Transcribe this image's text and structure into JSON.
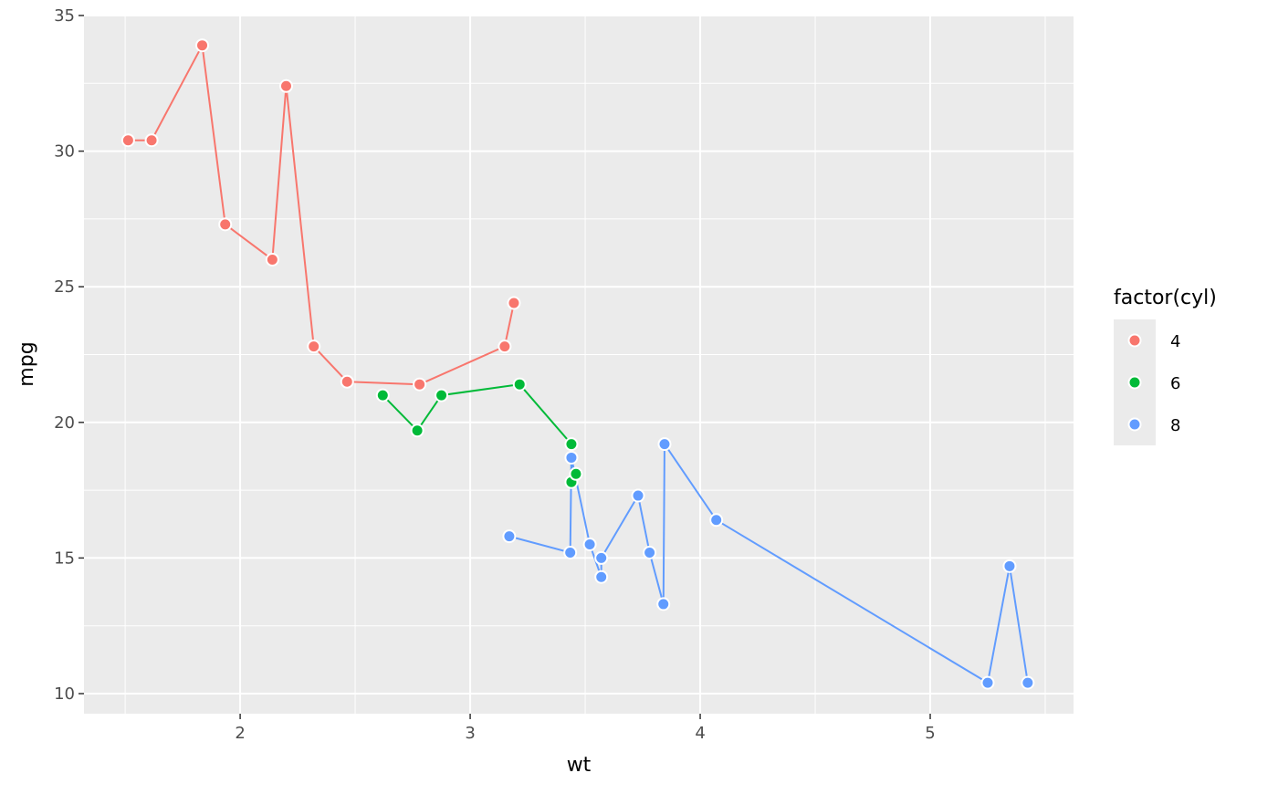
{
  "chart_data": {
    "type": "line",
    "title": "",
    "xlabel": "wt",
    "ylabel": "mpg",
    "xlim": [
      1.321,
      5.623
    ],
    "ylim": [
      9.26,
      35.0
    ],
    "x_ticks": [
      2,
      3,
      4,
      5
    ],
    "y_ticks": [
      10,
      15,
      20,
      25,
      30,
      35
    ],
    "x_tick_labels": [
      "2",
      "3",
      "4",
      "5"
    ],
    "y_tick_labels": [
      "10",
      "15",
      "20",
      "25",
      "30",
      "35"
    ],
    "grid": true,
    "markers": true,
    "legend": {
      "title": "factor(cyl)",
      "placement": "right"
    },
    "series": [
      {
        "name": "4",
        "color": "#F8766D",
        "x": [
          1.513,
          1.615,
          1.835,
          1.935,
          2.14,
          2.2,
          2.32,
          2.465,
          2.78,
          3.15,
          3.19
        ],
        "y": [
          30.4,
          30.4,
          33.9,
          27.3,
          26.0,
          32.4,
          22.8,
          21.5,
          21.4,
          22.8,
          24.4
        ]
      },
      {
        "name": "6",
        "color": "#00BA38",
        "x": [
          2.62,
          2.77,
          2.875,
          3.215,
          3.44,
          3.44,
          3.46
        ],
        "y": [
          21.0,
          19.7,
          21.0,
          21.4,
          19.2,
          17.8,
          18.1
        ]
      },
      {
        "name": "8",
        "color": "#619CFF",
        "x": [
          3.17,
          3.435,
          3.44,
          3.52,
          3.57,
          3.57,
          3.73,
          3.78,
          3.84,
          3.845,
          4.07,
          5.25,
          5.345,
          5.424
        ],
        "y": [
          15.8,
          15.2,
          18.7,
          15.5,
          14.3,
          15.0,
          17.3,
          15.2,
          13.3,
          19.2,
          16.4,
          10.4,
          14.7,
          10.4
        ]
      }
    ]
  }
}
